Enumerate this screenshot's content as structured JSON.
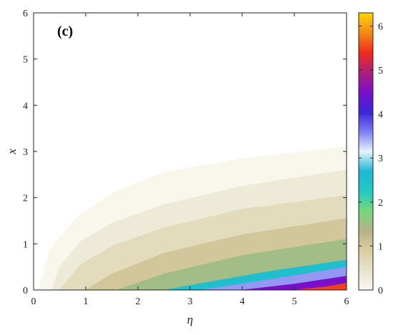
{
  "chart_data": {
    "type": "heatmap",
    "title": "",
    "panel_label": "(c)",
    "xlabel": "η",
    "ylabel": "x",
    "xlim": [
      0,
      6
    ],
    "ylim": [
      0,
      6
    ],
    "xticks": [
      "0",
      "1",
      "2",
      "3",
      "4",
      "5",
      "6"
    ],
    "yticks": [
      "0",
      "1",
      "2",
      "3",
      "4",
      "5",
      "6"
    ],
    "colorbar": {
      "range": [
        0,
        6.3
      ],
      "ticks": [
        "0",
        "1",
        "2",
        "3",
        "4",
        "5",
        "6"
      ],
      "colormap": [
        "#fbf8f0",
        "#e7e3cc",
        "#d8ce9f",
        "#b9b08a",
        "#74d77a",
        "#22c9c2",
        "#1fb7d6",
        "#e6f3fb",
        "#7d7df2",
        "#3a26d8",
        "#7a0fc8",
        "#b01e7a",
        "#f02a1c",
        "#f28a14",
        "#ffd500"
      ]
    },
    "level_curves": [
      {
        "level": 0.05,
        "points": [
          [
            0.1,
            0
          ],
          [
            0.3,
            0.85
          ],
          [
            0.8,
            1.55
          ],
          [
            1.5,
            2.1
          ],
          [
            2.5,
            2.55
          ],
          [
            4.0,
            2.85
          ],
          [
            6.0,
            3.1
          ]
        ]
      },
      {
        "level": 0.3,
        "points": [
          [
            0.35,
            0
          ],
          [
            0.5,
            0.5
          ],
          [
            0.9,
            1.05
          ],
          [
            1.5,
            1.45
          ],
          [
            2.5,
            1.85
          ],
          [
            4.0,
            2.25
          ],
          [
            6.0,
            2.6
          ]
        ]
      },
      {
        "level": 0.6,
        "points": [
          [
            0.5,
            0
          ],
          [
            0.9,
            0.55
          ],
          [
            1.5,
            0.95
          ],
          [
            2.5,
            1.35
          ],
          [
            4.0,
            1.75
          ],
          [
            6.0,
            2.05
          ]
        ]
      },
      {
        "level": 1.0,
        "points": [
          [
            1.0,
            0
          ],
          [
            1.5,
            0.35
          ],
          [
            2.5,
            0.8
          ],
          [
            4.0,
            1.2
          ],
          [
            6.0,
            1.55
          ]
        ]
      },
      {
        "level": 1.5,
        "points": [
          [
            1.6,
            0
          ],
          [
            2.5,
            0.35
          ],
          [
            4.0,
            0.75
          ],
          [
            6.0,
            1.1
          ]
        ]
      },
      {
        "level": 2.5,
        "points": [
          [
            2.5,
            0
          ],
          [
            3.5,
            0.2
          ],
          [
            4.5,
            0.4
          ],
          [
            6.0,
            0.65
          ]
        ]
      },
      {
        "level": 3.5,
        "points": [
          [
            3.2,
            0
          ],
          [
            4.5,
            0.22
          ],
          [
            6.0,
            0.5
          ]
        ]
      },
      {
        "level": 4.5,
        "points": [
          [
            4.0,
            0
          ],
          [
            5.0,
            0.13
          ],
          [
            6.0,
            0.3
          ]
        ]
      },
      {
        "level": 5.5,
        "points": [
          [
            5.0,
            0
          ],
          [
            5.6,
            0.07
          ],
          [
            6.0,
            0.15
          ]
        ]
      }
    ]
  }
}
